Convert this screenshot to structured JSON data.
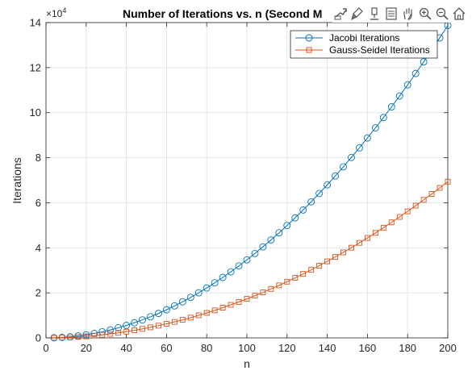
{
  "toolbar": {
    "icons": [
      "export-icon",
      "brush-icon",
      "data-tips-icon",
      "legend-icon",
      "pan-icon",
      "zoom-in-icon",
      "zoom-out-icon",
      "home-icon"
    ]
  },
  "chart_data": {
    "type": "line",
    "title": "Number of Iterations vs. n (Second M",
    "xlabel": "n",
    "ylabel": "Iterations",
    "xlim": [
      0,
      200
    ],
    "ylim": [
      0,
      140000
    ],
    "xticks": [
      0,
      20,
      40,
      60,
      80,
      100,
      120,
      140,
      160,
      180,
      200
    ],
    "yticks": [
      0,
      20000,
      40000,
      60000,
      80000,
      100000,
      120000,
      140000
    ],
    "ytick_labels": [
      "0",
      "2",
      "4",
      "6",
      "8",
      "10",
      "12",
      "14"
    ],
    "y_exponent_base": "×10",
    "y_exponent_power": "4",
    "grid": true,
    "legend": "top-right",
    "x": [
      4,
      8,
      12,
      16,
      20,
      24,
      28,
      32,
      36,
      40,
      44,
      48,
      52,
      56,
      60,
      64,
      68,
      72,
      76,
      80,
      84,
      88,
      92,
      96,
      100,
      104,
      108,
      112,
      116,
      120,
      124,
      128,
      132,
      136,
      140,
      144,
      148,
      152,
      156,
      160,
      164,
      168,
      172,
      176,
      180,
      184,
      188,
      192,
      196,
      200
    ],
    "series": [
      {
        "name": "Jacobi Iterations",
        "color": "#0072BD",
        "marker": "circle",
        "values": [
          60,
          220,
          500,
          880,
          1380,
          2000,
          2720,
          3550,
          4490,
          5550,
          6710,
          7990,
          9380,
          10880,
          12490,
          14210,
          16040,
          17980,
          20030,
          22190,
          24460,
          26850,
          29340,
          31950,
          34670,
          37500,
          40440,
          43490,
          46650,
          49920,
          53310,
          56800,
          60410,
          64130,
          67950,
          71890,
          75940,
          80110,
          84380,
          88760,
          93260,
          97860,
          102580,
          107410,
          112350,
          117400,
          122560,
          127830,
          133220,
          138710
        ]
      },
      {
        "name": "Gauss-Seidel Iterations",
        "color": "#D95319",
        "marker": "square",
        "values": [
          30,
          110,
          250,
          440,
          690,
          1000,
          1360,
          1780,
          2250,
          2770,
          3360,
          4000,
          4690,
          5440,
          6250,
          7110,
          8020,
          8990,
          10020,
          11100,
          12230,
          13420,
          14670,
          15970,
          17330,
          18750,
          20220,
          21740,
          23320,
          24960,
          26650,
          28400,
          30200,
          32060,
          33980,
          35940,
          37970,
          40050,
          42190,
          44380,
          46630,
          48930,
          51290,
          53700,
          56170,
          58700,
          61280,
          63920,
          66610,
          69360
        ]
      }
    ]
  }
}
